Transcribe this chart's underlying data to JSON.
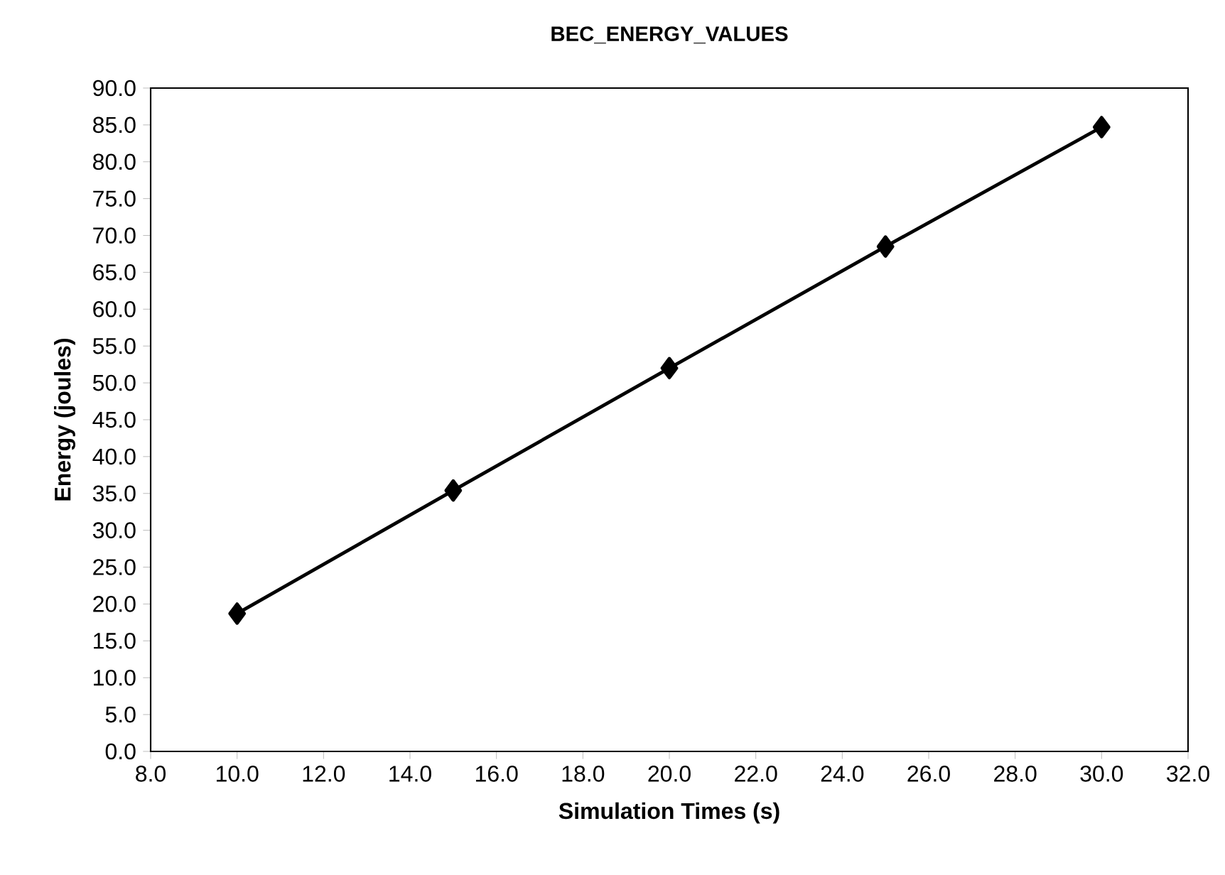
{
  "chart_data": {
    "type": "line",
    "title": "BEC_ENERGY_VALUES",
    "xlabel": "Simulation Times (s)",
    "ylabel": "Energy (joules)",
    "x": [
      10,
      15,
      20,
      25,
      30
    ],
    "series": [
      {
        "color": "#000000",
        "values": [
          18.7,
          35.4,
          52.0,
          68.5,
          84.7
        ]
      }
    ],
    "marker": "diamond",
    "line_style": "solid",
    "grid": false,
    "xlim": [
      8,
      32
    ],
    "xticks": [
      {
        "value": 8,
        "label": "8.0"
      },
      {
        "value": 10,
        "label": "10.0"
      },
      {
        "value": 12,
        "label": "12.0"
      },
      {
        "value": 14,
        "label": "14.0"
      },
      {
        "value": 16,
        "label": "16.0"
      },
      {
        "value": 18,
        "label": "18.0"
      },
      {
        "value": 20,
        "label": "20.0"
      },
      {
        "value": 22,
        "label": "22.0"
      },
      {
        "value": 24,
        "label": "24.0"
      },
      {
        "value": 26,
        "label": "26.0"
      },
      {
        "value": 28,
        "label": "28.0"
      },
      {
        "value": 30,
        "label": "30.0"
      },
      {
        "value": 32,
        "label": "32.0"
      }
    ],
    "ylim": [
      0,
      90
    ],
    "yticks": [
      {
        "value": 0,
        "label": "0.0"
      },
      {
        "value": 5,
        "label": "5.0"
      },
      {
        "value": 10,
        "label": "10.0"
      },
      {
        "value": 15,
        "label": "15.0"
      },
      {
        "value": 20,
        "label": "20.0"
      },
      {
        "value": 25,
        "label": "25.0"
      },
      {
        "value": 30,
        "label": "30.0"
      },
      {
        "value": 35,
        "label": "35.0"
      },
      {
        "value": 40,
        "label": "40.0"
      },
      {
        "value": 45,
        "label": "45.0"
      },
      {
        "value": 50,
        "label": "50.0"
      },
      {
        "value": 55,
        "label": "55.0"
      },
      {
        "value": 60,
        "label": "60.0"
      },
      {
        "value": 65,
        "label": "65.0"
      },
      {
        "value": 70,
        "label": "70.0"
      },
      {
        "value": 75,
        "label": "75.0"
      },
      {
        "value": 80,
        "label": "80.0"
      },
      {
        "value": 85,
        "label": "85.0"
      },
      {
        "value": 90,
        "label": "90.0"
      }
    ]
  }
}
